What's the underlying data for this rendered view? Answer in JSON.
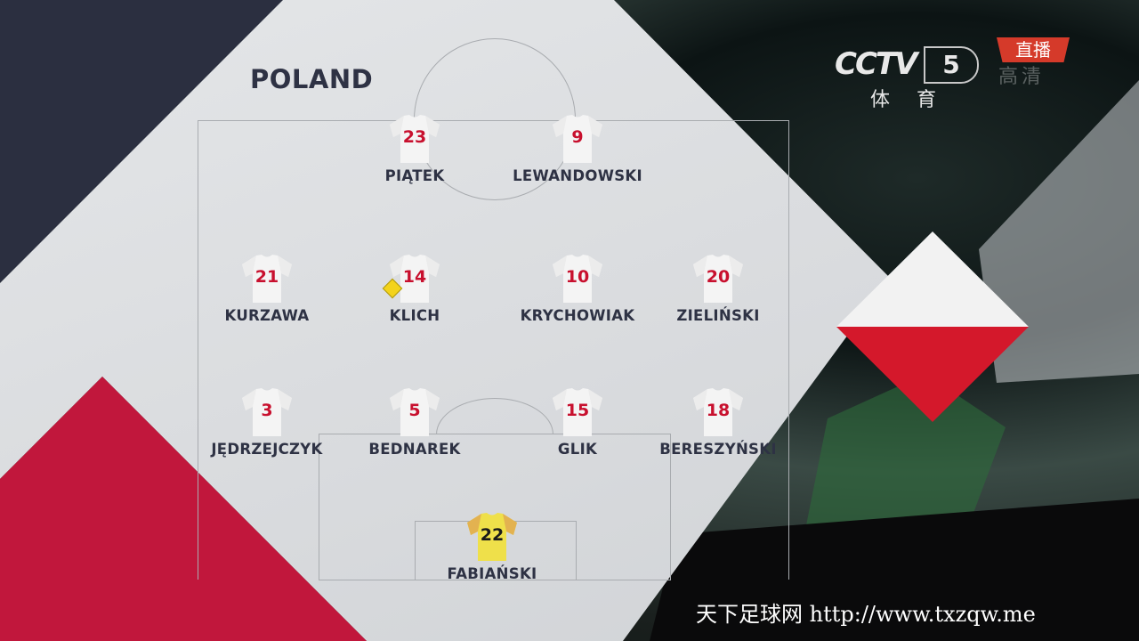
{
  "team": "POLAND",
  "broadcaster": {
    "logo_text": "CCTV",
    "channel": "5",
    "channel_name": "体育",
    "live_badge": "直播",
    "hd_label": "高清"
  },
  "colors": {
    "shirt_number": "#c8102e",
    "goalkeeper_shirt": "#f0e040",
    "flag_white": "#f2f2f2",
    "flag_red": "#d4182b",
    "accent_red": "#c1173c",
    "navy": "#2b2f40"
  },
  "players": [
    {
      "number": "23",
      "name": "PIĄTEK"
    },
    {
      "number": "9",
      "name": "LEWANDOWSKI"
    },
    {
      "number": "21",
      "name": "KURZAWA"
    },
    {
      "number": "14",
      "name": "KLICH",
      "card": "yellow"
    },
    {
      "number": "10",
      "name": "KRYCHOWIAK"
    },
    {
      "number": "20",
      "name": "ZIELIŃSKI"
    },
    {
      "number": "3",
      "name": "JĘDRZEJCZYK"
    },
    {
      "number": "5",
      "name": "BEDNAREK"
    },
    {
      "number": "15",
      "name": "GLIK"
    },
    {
      "number": "18",
      "name": "BERESZYŃSKI"
    },
    {
      "number": "22",
      "name": "FABIAŃSKI",
      "goalkeeper": true
    }
  ],
  "watermark": "天下足球网 http://www.txzqw.me"
}
